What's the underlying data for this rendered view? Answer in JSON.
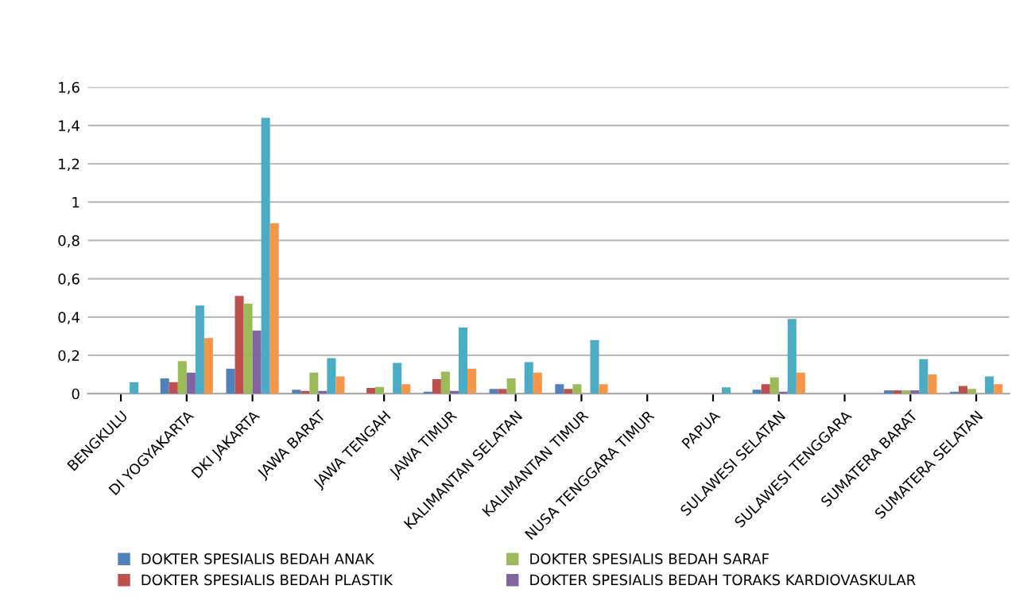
{
  "chart_data": {
    "type": "bar",
    "categories": [
      "BENGKULU",
      "DI YOGYAKARTA",
      "DKI JAKARTA",
      "JAWA BARAT",
      "JAWA TENGAH",
      "JAWA TIMUR",
      "KALIMANTAN SELATAN",
      "KALIMANTAN TIMUR",
      "NUSA TENGGARA TIMUR",
      "PAPUA",
      "SULAWESI SELATAN",
      "SULAWESI TENGGARA",
      "SUMATERA BARAT",
      "SUMATERA SELATAN"
    ],
    "series": [
      {
        "name": "DOKTER SPESIALIS BEDAH ANAK",
        "color": "#4f81bd",
        "values": [
          0,
          0.08,
          0.13,
          0.02,
          0,
          0.01,
          0.025,
          0.05,
          0,
          0,
          0.02,
          0,
          0.017,
          0.01
        ]
      },
      {
        "name": "DOKTER SPESIALIS BEDAH PLASTIK",
        "color": "#c0504d",
        "values": [
          0,
          0.06,
          0.51,
          0.014,
          0.03,
          0.075,
          0.025,
          0.025,
          0,
          0,
          0.05,
          0,
          0.017,
          0.04
        ]
      },
      {
        "name": "DOKTER SPESIALIS BEDAH SARAF",
        "color": "#9bbb59",
        "values": [
          0,
          0.17,
          0.47,
          0.11,
          0.035,
          0.115,
          0.08,
          0.05,
          0,
          0,
          0.085,
          0,
          0.017,
          0.025
        ]
      },
      {
        "name": "DOKTER SPESIALIS BEDAH TORAKS KARDIOVASKULAR",
        "color": "#8064a2",
        "values": [
          0,
          0.11,
          0.33,
          0.014,
          0,
          0.014,
          0,
          0,
          0,
          0,
          0.01,
          0,
          0.017,
          0
        ]
      },
      {
        "color": "#4bacc6",
        "values": [
          0.06,
          0.46,
          1.44,
          0.185,
          0.16,
          0.345,
          0.165,
          0.28,
          0,
          0.033,
          0.39,
          0,
          0.18,
          0.09
        ]
      },
      {
        "color": "#f79646",
        "values": [
          0,
          0.29,
          0.89,
          0.09,
          0.05,
          0.13,
          0.11,
          0.05,
          0,
          0,
          0.11,
          0,
          0.1,
          0.05
        ]
      }
    ],
    "ylim": [
      0,
      1.6
    ],
    "yticks": [
      0,
      {
        "value": 0.2,
        "label": "0,2"
      },
      {
        "value": 0.4,
        "label": "0,4"
      },
      {
        "value": 0.6,
        "label": "0,6"
      },
      {
        "value": 0.8,
        "label": "0,8"
      },
      1,
      {
        "value": 1.2,
        "label": "1,2"
      },
      {
        "value": 1.4,
        "label": "1,4"
      },
      {
        "value": 1.6,
        "label": "1,6"
      }
    ],
    "grid": "y",
    "legend": "bottom"
  }
}
